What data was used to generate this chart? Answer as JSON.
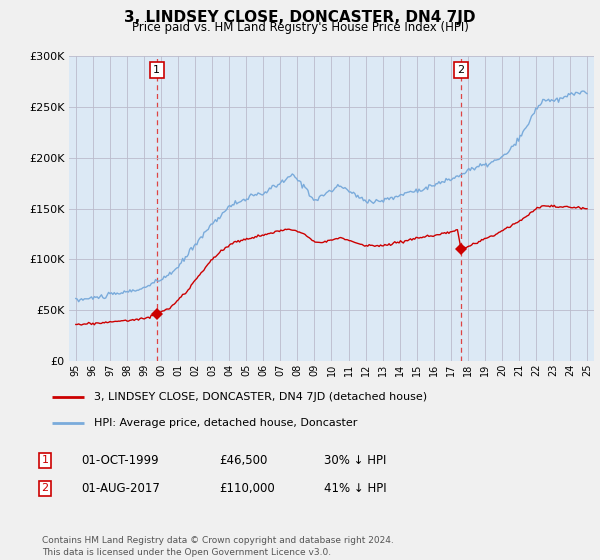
{
  "title": "3, LINDSEY CLOSE, DONCASTER, DN4 7JD",
  "subtitle": "Price paid vs. HM Land Registry's House Price Index (HPI)",
  "background_color": "#f0f0f0",
  "plot_bg_color": "#dce9f5",
  "xmin": 1994.6,
  "xmax": 2025.4,
  "ymin": 0,
  "ymax": 300000,
  "yticks": [
    0,
    50000,
    100000,
    150000,
    200000,
    250000,
    300000
  ],
  "ytick_labels": [
    "£0",
    "£50K",
    "£100K",
    "£150K",
    "£200K",
    "£250K",
    "£300K"
  ],
  "sale1_x": 1999.75,
  "sale1_y": 46500,
  "sale1_label": "1",
  "sale2_x": 2017.583,
  "sale2_y": 110000,
  "sale2_label": "2",
  "vline1_x": 1999.75,
  "vline2_x": 2017.583,
  "legend_line1": "3, LINDSEY CLOSE, DONCASTER, DN4 7JD (detached house)",
  "legend_line2": "HPI: Average price, detached house, Doncaster",
  "annotation1_date": "01-OCT-1999",
  "annotation1_price": "£46,500",
  "annotation1_hpi": "30% ↓ HPI",
  "annotation2_date": "01-AUG-2017",
  "annotation2_price": "£110,000",
  "annotation2_hpi": "41% ↓ HPI",
  "footer": "Contains HM Land Registry data © Crown copyright and database right 2024.\nThis data is licensed under the Open Government Licence v3.0.",
  "red_color": "#cc0000",
  "blue_color": "#7aabdb",
  "grid_color": "#bbbbcc",
  "vline_color": "#dd4444"
}
